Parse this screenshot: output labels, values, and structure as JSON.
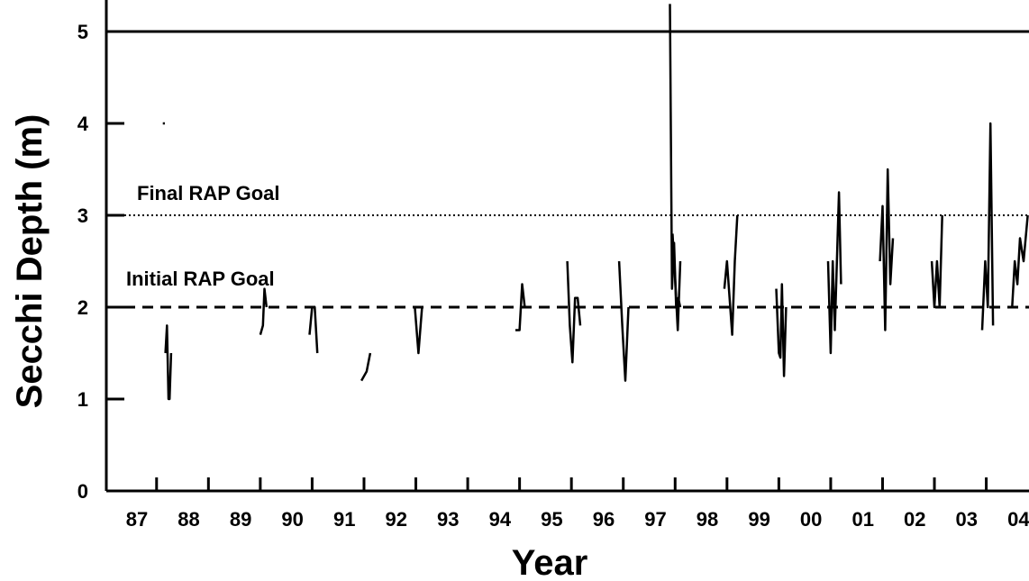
{
  "chart_data": {
    "type": "line",
    "title": "",
    "xlabel": "Year",
    "ylabel": "Secchi Depth (m)",
    "ylim": [
      0,
      5.2
    ],
    "xlim": [
      1987,
      2004.4
    ],
    "y_ticks": [
      0,
      1,
      2,
      3,
      4,
      5
    ],
    "x_tick_labels": [
      "87",
      "88",
      "89",
      "90",
      "91",
      "92",
      "93",
      "94",
      "95",
      "96",
      "97",
      "98",
      "99",
      "00",
      "01",
      "02",
      "03",
      "04"
    ],
    "grid": false,
    "legend": "none",
    "reference_lines": [
      {
        "label": "Final RAP Goal",
        "y": 3,
        "style": "dotted"
      },
      {
        "label": "Initial RAP Goal",
        "y": 2,
        "style": "dashed"
      }
    ],
    "series": [
      {
        "x": [
          1987.62,
          1987.66
        ],
        "y": [
          4.0,
          4.0
        ]
      },
      {
        "x": [
          1987.67,
          1987.7,
          1987.73,
          1987.75,
          1987.78
        ],
        "y": [
          1.5,
          1.8,
          1.0,
          1.0,
          1.5
        ]
      },
      {
        "x": [
          1989.5,
          1989.55,
          1989.58,
          1989.62
        ],
        "y": [
          1.7,
          1.8,
          2.2,
          2.0
        ]
      },
      {
        "x": [
          1990.45,
          1990.5,
          1990.55,
          1990.6
        ],
        "y": [
          1.7,
          2.0,
          2.0,
          1.5
        ]
      },
      {
        "x": [
          1991.45,
          1991.55,
          1991.62
        ],
        "y": [
          1.2,
          1.3,
          1.5
        ]
      },
      {
        "x": [
          1992.48,
          1992.55,
          1992.62
        ],
        "y": [
          2.0,
          1.5,
          2.0
        ]
      },
      {
        "x": [
          1994.42,
          1994.5,
          1994.55,
          1994.6
        ],
        "y": [
          1.75,
          1.75,
          2.25,
          2.0
        ]
      },
      {
        "x": [
          1995.42,
          1995.47,
          1995.52,
          1995.57,
          1995.62,
          1995.67
        ],
        "y": [
          2.5,
          1.8,
          1.4,
          2.1,
          2.1,
          1.8
        ]
      },
      {
        "x": [
          1996.42,
          1996.48,
          1996.54,
          1996.6
        ],
        "y": [
          2.5,
          1.8,
          1.2,
          2.0
        ]
      },
      {
        "x": [
          1997.4,
          1997.44,
          1997.48,
          1997.52,
          1997.56,
          1997.6
        ],
        "y": [
          5.3,
          2.2,
          2.7,
          2.0,
          2.1,
          2.0
        ]
      },
      {
        "x": [
          1997.45,
          1997.5,
          1997.55,
          1997.6
        ],
        "y": [
          2.8,
          2.3,
          1.75,
          2.5
        ]
      },
      {
        "x": [
          1998.45,
          1998.5,
          1998.55,
          1998.6,
          1998.65,
          1998.7
        ],
        "y": [
          2.2,
          2.5,
          2.1,
          1.7,
          2.5,
          3.0
        ]
      },
      {
        "x": [
          1999.45,
          1999.5,
          1999.53,
          1999.56,
          1999.6,
          1999.64
        ],
        "y": [
          2.2,
          1.5,
          1.45,
          2.25,
          1.25,
          2.0
        ]
      },
      {
        "x": [
          2000.45,
          2000.5,
          2000.54,
          2000.58,
          2000.62,
          2000.66,
          2000.7
        ],
        "y": [
          2.5,
          1.5,
          2.5,
          1.75,
          2.5,
          3.25,
          2.25
        ]
      },
      {
        "x": [
          2001.45,
          2001.5,
          2001.55,
          2001.6,
          2001.65,
          2001.7
        ],
        "y": [
          2.5,
          3.1,
          1.75,
          3.5,
          2.25,
          2.75
        ]
      },
      {
        "x": [
          2002.45,
          2002.5,
          2002.55,
          2002.6,
          2002.65
        ],
        "y": [
          2.5,
          2.0,
          2.5,
          2.0,
          3.0
        ]
      },
      {
        "x": [
          2003.42,
          2003.48,
          2003.53,
          2003.58,
          2003.63
        ],
        "y": [
          1.75,
          2.5,
          2.0,
          4.0,
          1.8
        ]
      },
      {
        "x": [
          2004.0,
          2004.05,
          2004.1,
          2004.15,
          2004.22,
          2004.3
        ],
        "y": [
          2.0,
          2.5,
          2.25,
          2.75,
          2.5,
          3.0
        ]
      }
    ]
  }
}
